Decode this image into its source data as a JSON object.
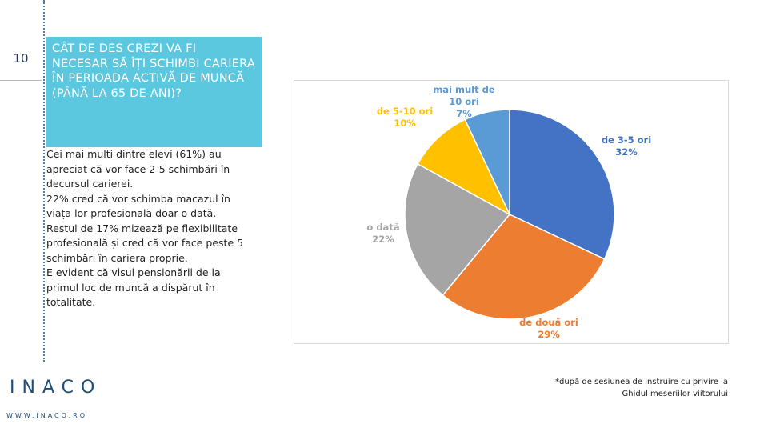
{
  "slide": {
    "number": "10",
    "heading": "CÂT DE DES CREZI VA FI NECESAR SĂ ÎȚI SCHIMBI CARIERA ÎN PERIOADA ACTIVĂ DE MUNCĂ (PÂNĂ LA 65 DE ANI)?",
    "body": [
      "Cei mai multi dintre elevi (61%) au apreciat că vor face 2-5 schimbări în decursul carierei.",
      "22% cred că vor schimba macazul în viața lor profesională doar o dată.",
      "Restul de 17% mizează pe flexibilitate profesională și cred că vor face peste 5 schimbări în cariera proprie.",
      "E evident că visul pensionării de la primul loc de muncă a dispărut în totalitate."
    ],
    "footnote": [
      "*după de sesiunea de instruire cu privire la",
      "Ghidul meseriilor viitorului"
    ],
    "logo": {
      "name": "INACO",
      "url": "WWW.INACO.RO"
    }
  },
  "chart_data": {
    "type": "pie",
    "categories": [
      "de 3-5 ori",
      "de două ori",
      "o dată",
      "de 5-10 ori",
      "mai mult de 10 ori"
    ],
    "values": [
      32,
      29,
      22,
      10,
      7
    ],
    "value_labels": [
      "32%",
      "29%",
      "22%",
      "10%",
      "7%"
    ],
    "colors": [
      "#4472c4",
      "#ed7d31",
      "#a5a5a5",
      "#ffc000",
      "#5b9bd5"
    ],
    "label_colors": [
      "#4472c4",
      "#ed7d31",
      "#a5a5a5",
      "#ffc000",
      "#5b9bd5"
    ]
  }
}
